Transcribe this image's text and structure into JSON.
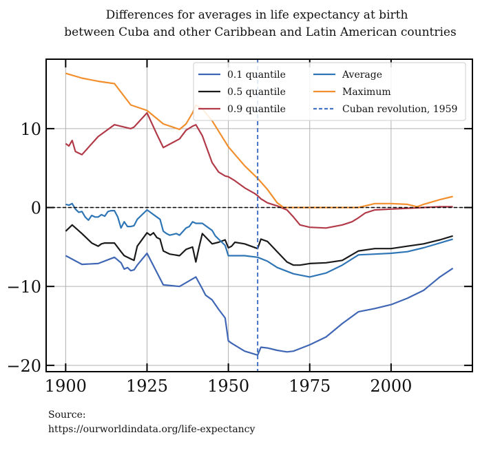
{
  "chart_data": {
    "type": "line",
    "title_lines": [
      "Differences for averages in life expectancy at birth",
      "between Cuba and other Caribbean and Latin American countries"
    ],
    "xlabel": "",
    "ylabel": "",
    "xlim": [
      1894,
      2025
    ],
    "ylim": [
      -20.8,
      18.8
    ],
    "x_ticks": [
      1900,
      1925,
      1950,
      1975,
      2000
    ],
    "x_tick_labels": [
      "1900",
      "1925",
      "1950",
      "1975",
      "2000"
    ],
    "y_ticks": [
      10,
      0,
      -10,
      -20
    ],
    "y_tick_labels": [
      "10",
      "0",
      "−10",
      "−20"
    ],
    "grid": true,
    "legend_position": "top-right",
    "zero_line": 0,
    "vertical_marker": {
      "x": 1959,
      "label": "Cuban revolution, 1959",
      "color": "#4472c4"
    },
    "series": [
      {
        "name": "0.1 quantile",
        "color": "#3f66b5",
        "x": [
          1900,
          1905,
          1910,
          1915,
          1917,
          1918,
          1919,
          1920,
          1921,
          1922,
          1925,
          1930,
          1935,
          1940,
          1942,
          1943,
          1945,
          1947,
          1949,
          1950,
          1951,
          1955,
          1959,
          1960,
          1962,
          1965,
          1968,
          1970,
          1975,
          1980,
          1985,
          1990,
          1995,
          2000,
          2005,
          2010,
          2015,
          2019
        ],
        "y": [
          -6.1,
          -7.2,
          -7.1,
          -6.3,
          -7.0,
          -7.8,
          -7.6,
          -8.0,
          -7.9,
          -7.3,
          -5.8,
          -9.8,
          -10.0,
          -8.8,
          -10.3,
          -11.1,
          -11.7,
          -12.9,
          -14.0,
          -16.9,
          -17.2,
          -18.2,
          -18.7,
          -17.7,
          -17.8,
          -18.1,
          -18.3,
          -18.2,
          -17.4,
          -16.4,
          -14.7,
          -13.2,
          -12.8,
          -12.3,
          -11.5,
          -10.5,
          -8.8,
          -7.7
        ]
      },
      {
        "name": "0.5 quantile",
        "color": "#1a1a1a",
        "x": [
          1900,
          1902,
          1905,
          1908,
          1910,
          1911,
          1912,
          1915,
          1917,
          1918,
          1920,
          1921,
          1922,
          1925,
          1926,
          1927,
          1928,
          1929,
          1930,
          1932,
          1935,
          1937,
          1939,
          1940,
          1941,
          1942,
          1945,
          1947,
          1949,
          1950,
          1951,
          1952,
          1955,
          1959,
          1960,
          1962,
          1965,
          1968,
          1970,
          1972,
          1975,
          1980,
          1985,
          1990,
          1995,
          2000,
          2005,
          2010,
          2015,
          2019
        ],
        "y": [
          -3.0,
          -2.2,
          -3.3,
          -4.5,
          -4.9,
          -4.6,
          -4.5,
          -4.5,
          -5.6,
          -6.1,
          -6.5,
          -6.7,
          -4.9,
          -3.2,
          -3.5,
          -3.2,
          -3.8,
          -4.0,
          -5.5,
          -5.9,
          -6.1,
          -5.3,
          -5.0,
          -6.9,
          -5.0,
          -3.3,
          -4.6,
          -4.4,
          -4.1,
          -5.1,
          -4.9,
          -4.4,
          -4.6,
          -5.2,
          -4.0,
          -4.3,
          -5.6,
          -6.9,
          -7.3,
          -7.3,
          -7.1,
          -7.0,
          -6.7,
          -5.5,
          -5.2,
          -5.2,
          -4.9,
          -4.6,
          -4.1,
          -3.6
        ]
      },
      {
        "name": "0.9 quantile",
        "color": "#b23a48",
        "x": [
          1900,
          1901,
          1902,
          1903,
          1905,
          1910,
          1915,
          1920,
          1921,
          1925,
          1928,
          1930,
          1935,
          1937,
          1939,
          1940,
          1942,
          1945,
          1947,
          1949,
          1950,
          1952,
          1955,
          1958,
          1959,
          1960,
          1962,
          1965,
          1968,
          1970,
          1972,
          1975,
          1980,
          1985,
          1988,
          1990,
          1992,
          1995,
          2000,
          2005,
          2010,
          2015,
          2019
        ],
        "y": [
          8.1,
          7.8,
          8.5,
          7.1,
          6.7,
          9.0,
          10.5,
          10.0,
          10.2,
          12.0,
          9.3,
          7.6,
          8.7,
          9.8,
          10.3,
          10.5,
          9.1,
          5.7,
          4.5,
          4.0,
          3.9,
          3.4,
          2.5,
          1.8,
          1.5,
          1.1,
          0.6,
          0.2,
          -0.3,
          -1.2,
          -2.2,
          -2.5,
          -2.6,
          -2.2,
          -1.8,
          -1.3,
          -0.7,
          -0.3,
          -0.2,
          -0.1,
          0.0,
          0.1,
          0.1
        ]
      },
      {
        "name": "Average",
        "color": "#2e75b6",
        "x": [
          1900,
          1901,
          1902,
          1903,
          1904,
          1905,
          1906,
          1907,
          1908,
          1909,
          1910,
          1911,
          1912,
          1913,
          1914,
          1915,
          1916,
          1917,
          1918,
          1919,
          1920,
          1921,
          1922,
          1925,
          1926,
          1928,
          1929,
          1930,
          1931,
          1932,
          1934,
          1935,
          1937,
          1938,
          1939,
          1940,
          1941,
          1942,
          1945,
          1946,
          1948,
          1949,
          1950,
          1955,
          1959,
          1962,
          1965,
          1970,
          1975,
          1980,
          1985,
          1990,
          1995,
          2000,
          2005,
          2010,
          2015,
          2019
        ],
        "y": [
          0.4,
          0.3,
          0.5,
          -0.2,
          -0.6,
          -0.5,
          -1.2,
          -1.6,
          -1.0,
          -1.2,
          -1.2,
          -0.9,
          -1.1,
          -0.5,
          -0.4,
          -0.4,
          -1.2,
          -2.6,
          -1.8,
          -2.4,
          -2.4,
          -2.3,
          -1.5,
          -0.3,
          -0.6,
          -1.2,
          -1.5,
          -3.0,
          -3.3,
          -3.5,
          -3.3,
          -3.5,
          -2.6,
          -2.4,
          -1.8,
          -2.0,
          -2.0,
          -2.0,
          -2.9,
          -3.6,
          -4.4,
          -4.8,
          -6.1,
          -6.1,
          -6.3,
          -6.8,
          -7.6,
          -8.4,
          -8.8,
          -8.3,
          -7.3,
          -6.0,
          -5.9,
          -5.8,
          -5.6,
          -5.1,
          -4.5,
          -4.0
        ]
      },
      {
        "name": "Maximum",
        "color": "#f28e2b",
        "x": [
          1900,
          1905,
          1910,
          1915,
          1920,
          1925,
          1930,
          1935,
          1937,
          1939,
          1940,
          1942,
          1945,
          1950,
          1955,
          1959,
          1962,
          1965,
          1967,
          1970,
          1975,
          1980,
          1985,
          1990,
          1993,
          1995,
          2000,
          2005,
          2008,
          2010,
          2015,
          2019
        ],
        "y": [
          17.0,
          16.4,
          16.0,
          15.7,
          13.0,
          12.3,
          10.6,
          9.9,
          10.6,
          12.0,
          13.0,
          12.5,
          11.0,
          7.7,
          5.3,
          3.7,
          2.3,
          0.6,
          0.0,
          0.0,
          0.0,
          0.0,
          0.0,
          0.0,
          0.3,
          0.5,
          0.5,
          0.4,
          0.1,
          0.4,
          1.0,
          1.4
        ]
      }
    ]
  },
  "source": {
    "line1": "Source:",
    "line2": "https://ourworldindata.org/life-expectancy"
  }
}
